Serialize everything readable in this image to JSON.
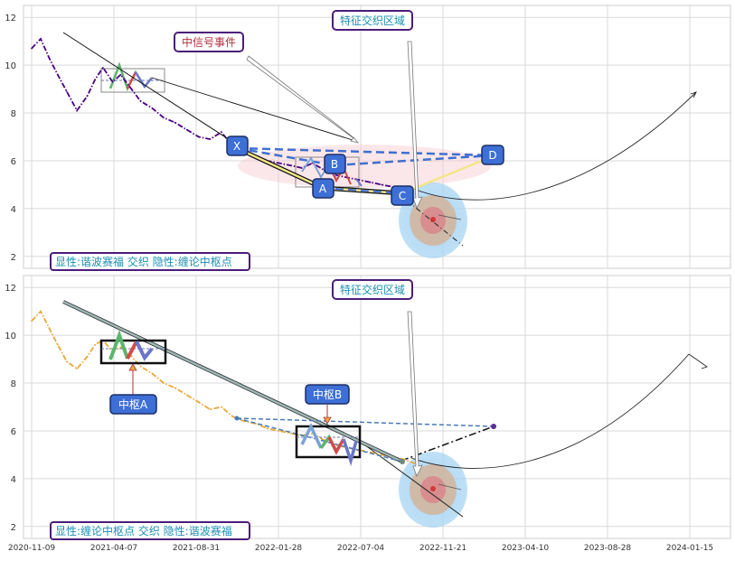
{
  "chart_data": [
    {
      "type": "line",
      "panel": "top",
      "ylim": [
        1.5,
        12.5
      ],
      "yticks": [
        2,
        4,
        6,
        8,
        10,
        12
      ],
      "xticks": [
        "2020-11-09",
        "2021-04-07",
        "2021-08-31",
        "2022-01-28",
        "2022-07-04",
        "2022-11-21",
        "2023-04-10",
        "2023-08-28",
        "2024-01-15"
      ],
      "grid": true,
      "series": [
        {
          "color": "#4b0082",
          "style": "dash-dot",
          "x": [
            "2020-11-09",
            "2020-11-25",
            "2020-12-10",
            "2020-12-25",
            "2021-01-10",
            "2021-01-28",
            "2021-02-15",
            "2021-03-01",
            "2021-03-15",
            "2021-04-01",
            "2021-04-15",
            "2021-05-01",
            "2021-05-20",
            "2021-06-10",
            "2021-06-30",
            "2021-07-20",
            "2021-08-10",
            "2021-08-31",
            "2021-09-20",
            "2021-10-10",
            "2021-10-30",
            "2021-11-20",
            "2021-12-10",
            "2021-12-30",
            "2022-01-20",
            "2022-02-10",
            "2022-03-01",
            "2022-03-20",
            "2022-04-10",
            "2022-05-01",
            "2022-05-20",
            "2022-06-10",
            "2022-06-30",
            "2022-07-20",
            "2022-08-10",
            "2022-08-30",
            "2022-09-20"
          ],
          "y": [
            10.7,
            11.1,
            10.3,
            9.6,
            8.9,
            8.1,
            8.7,
            9.4,
            9.9,
            9.3,
            9.6,
            9.1,
            8.5,
            8.2,
            7.8,
            7.6,
            7.3,
            7.0,
            6.9,
            7.2,
            6.6,
            6.4,
            6.2,
            6.0,
            5.9,
            5.8,
            5.7,
            5.9,
            5.6,
            5.4,
            5.3,
            5.2,
            5.1,
            5.0,
            4.9,
            4.8,
            4.6
          ]
        }
      ],
      "annotations": {
        "label_signal": "中信号事件",
        "label_region": "特征交织区域",
        "points": [
          "X",
          "A",
          "B",
          "C",
          "D"
        ],
        "legend": "显性:谐波赛福 交织 隐性:缠论中枢点"
      }
    },
    {
      "type": "line",
      "panel": "bottom",
      "ylim": [
        1.5,
        12.5
      ],
      "yticks": [
        2,
        4,
        6,
        8,
        10,
        12
      ],
      "xticks": [
        "2020-11-09",
        "2021-04-07",
        "2021-08-31",
        "2022-01-28",
        "2022-07-04",
        "2022-11-21",
        "2023-04-10",
        "2023-08-28",
        "2024-01-15"
      ],
      "grid": true,
      "series": [
        {
          "color": "#e8a838",
          "style": "dash-dot",
          "x": [
            "2020-11-09",
            "2020-11-25",
            "2020-12-10",
            "2020-12-25",
            "2021-01-10",
            "2021-01-28",
            "2021-02-15",
            "2021-03-01",
            "2021-03-15",
            "2021-04-01",
            "2021-04-15",
            "2021-05-01",
            "2021-05-20",
            "2021-06-10",
            "2021-06-30",
            "2021-07-20",
            "2021-08-10",
            "2021-08-31",
            "2021-09-20",
            "2021-10-10",
            "2021-10-30",
            "2021-11-20",
            "2021-12-10",
            "2021-12-30",
            "2022-01-20",
            "2022-02-10",
            "2022-03-01",
            "2022-03-20",
            "2022-04-10",
            "2022-05-01",
            "2022-05-20",
            "2022-06-10",
            "2022-06-30",
            "2022-07-20",
            "2022-08-10",
            "2022-08-30",
            "2022-09-20"
          ],
          "y": [
            10.6,
            11.0,
            10.3,
            9.6,
            8.9,
            8.6,
            9.1,
            9.6,
            9.8,
            9.3,
            9.5,
            9.2,
            8.7,
            8.4,
            8.0,
            7.8,
            7.5,
            7.2,
            6.9,
            7.0,
            6.6,
            6.4,
            6.3,
            6.1,
            6.0,
            5.9,
            5.8,
            5.9,
            5.6,
            5.4,
            5.3,
            5.2,
            5.1,
            5.0,
            4.9,
            4.8,
            4.6
          ]
        }
      ],
      "annotations": {
        "label_region": "特征交织区域",
        "center_a": "中枢A",
        "center_b": "中枢B",
        "legend": "显性:缠论中枢点 交织 隐性:谐波赛福"
      }
    }
  ],
  "colors": {
    "purple_line": "#4b0082",
    "orange_line": "#e8a838",
    "blue_dash": "#3f6fd1",
    "label_border": "#4b1d7a",
    "label_text_blue": "#1f8fb3",
    "label_text_red": "#b03040",
    "badge_fill": "#3d6fd6"
  }
}
